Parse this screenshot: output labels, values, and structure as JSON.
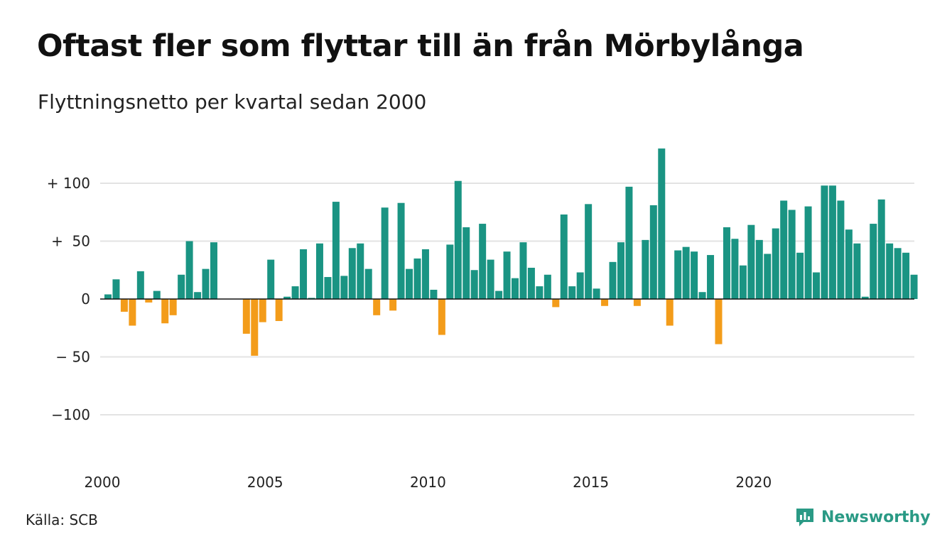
{
  "title": "Oftast fler som flyttar till än från Mörbylånga",
  "subtitle": "Flyttningsnetto per kvartal sedan 2000",
  "source": "Källa: SCB",
  "brand": "Newsworthy",
  "colors": {
    "positive": "#1a9483",
    "negative": "#f39c1a",
    "grid": "#e3e3e3",
    "axis": "#111111",
    "brand": "#2a9a85"
  },
  "chart_data": {
    "type": "bar",
    "title": "Oftast fler som flyttar till än från Mörbylånga",
    "subtitle": "Flyttningsnetto per kvartal sedan 2000",
    "xlabel": "",
    "ylabel": "",
    "x_start": "2000 Q1",
    "x_ticks": [
      "2000",
      "2005",
      "2010",
      "2015",
      "2020"
    ],
    "y_ticks": [
      {
        "value": 100,
        "label": "+ 100"
      },
      {
        "value": 50,
        "label": "+  50"
      },
      {
        "value": 0,
        "label": "0"
      },
      {
        "value": -50,
        "label": "− 50"
      },
      {
        "value": -100,
        "label": "−100"
      }
    ],
    "ylim": [
      -130,
      130
    ],
    "grid": true,
    "values": [
      4,
      17,
      -11,
      -23,
      24,
      -3,
      7,
      -21,
      -14,
      21,
      50,
      6,
      26,
      49,
      0,
      0,
      0,
      -30,
      -49,
      -20,
      34,
      -19,
      2,
      11,
      43,
      1,
      48,
      19,
      84,
      20,
      44,
      48,
      26,
      -14,
      79,
      -10,
      83,
      26,
      35,
      43,
      8,
      -31,
      47,
      102,
      62,
      25,
      65,
      34,
      7,
      41,
      18,
      49,
      27,
      11,
      21,
      -7,
      73,
      11,
      23,
      82,
      9,
      -6,
      32,
      49,
      97,
      -6,
      51,
      81,
      130,
      -23,
      42,
      45,
      41,
      6,
      38,
      -39,
      62,
      52,
      29,
      64,
      51,
      39,
      61,
      85,
      77,
      40,
      80,
      23,
      98,
      98,
      85,
      60,
      48,
      2,
      65,
      86,
      48,
      44,
      40,
      21
    ]
  }
}
